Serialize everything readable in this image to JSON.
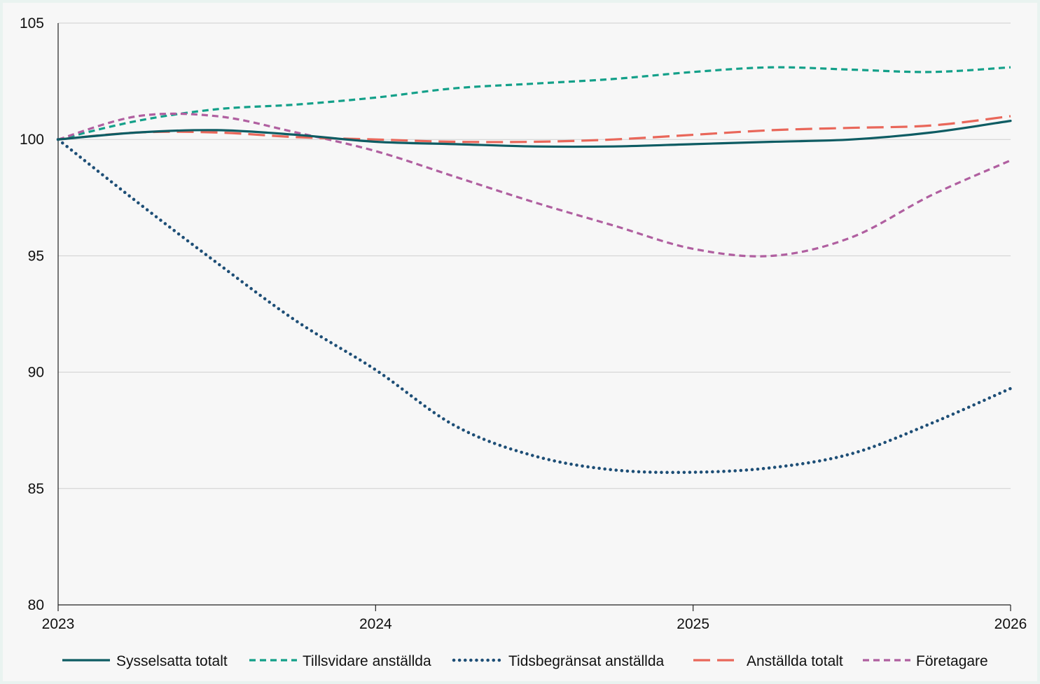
{
  "chart_data": {
    "type": "line",
    "title": "",
    "xlabel": "",
    "ylabel": "",
    "xlim": [
      2023,
      2026
    ],
    "ylim": [
      80,
      105
    ],
    "y_ticks": [
      "80",
      "85",
      "90",
      "95",
      "100",
      "105"
    ],
    "x_ticks": [
      "2023",
      "2024",
      "2025",
      "2026"
    ],
    "grid": "horizontal",
    "legend_position": "bottom",
    "series": [
      {
        "name": "Sysselsatta totalt",
        "color": "#0e5c63",
        "style": "solid",
        "x": [
          2023,
          2023.25,
          2023.5,
          2023.75,
          2024,
          2024.25,
          2024.5,
          2024.75,
          2025,
          2025.25,
          2025.5,
          2025.75,
          2026
        ],
        "y": [
          100,
          100.3,
          100.4,
          100.2,
          99.9,
          99.8,
          99.7,
          99.7,
          99.8,
          99.9,
          100.0,
          100.3,
          100.8
        ]
      },
      {
        "name": "Tillsvidare anställda",
        "color": "#13a089",
        "style": "dashed",
        "x": [
          2023,
          2023.25,
          2023.5,
          2023.75,
          2024,
          2024.25,
          2024.5,
          2024.75,
          2025,
          2025.25,
          2025.5,
          2025.75,
          2026
        ],
        "y": [
          100,
          100.8,
          101.3,
          101.5,
          101.8,
          102.2,
          102.4,
          102.6,
          102.9,
          103.1,
          103.0,
          102.9,
          103.1
        ]
      },
      {
        "name": "Tidsbegränsat anställda",
        "color": "#1d4e76",
        "style": "dotted",
        "x": [
          2023,
          2023.25,
          2023.5,
          2023.75,
          2024,
          2024.25,
          2024.5,
          2024.75,
          2025,
          2025.25,
          2025.5,
          2025.75,
          2026
        ],
        "y": [
          100,
          97.3,
          94.7,
          92.2,
          90.1,
          87.7,
          86.4,
          85.8,
          85.7,
          85.9,
          86.5,
          87.8,
          89.3
        ]
      },
      {
        "name": "Anställda totalt",
        "color": "#e9675a",
        "style": "longdash",
        "x": [
          2023,
          2023.25,
          2023.5,
          2023.75,
          2024,
          2024.25,
          2024.5,
          2024.75,
          2025,
          2025.25,
          2025.5,
          2025.75,
          2026
        ],
        "y": [
          100,
          100.3,
          100.3,
          100.1,
          100.0,
          99.9,
          99.9,
          100.0,
          100.2,
          100.4,
          100.5,
          100.6,
          101.0
        ]
      },
      {
        "name": "Företagare",
        "color": "#b05fa0",
        "style": "dashed",
        "x": [
          2023,
          2023.25,
          2023.5,
          2023.75,
          2024,
          2024.25,
          2024.5,
          2024.75,
          2025,
          2025.25,
          2025.5,
          2025.75,
          2026
        ],
        "y": [
          100,
          101.0,
          101.0,
          100.3,
          99.5,
          98.4,
          97.3,
          96.3,
          95.3,
          95.0,
          95.8,
          97.6,
          99.1
        ]
      }
    ]
  }
}
